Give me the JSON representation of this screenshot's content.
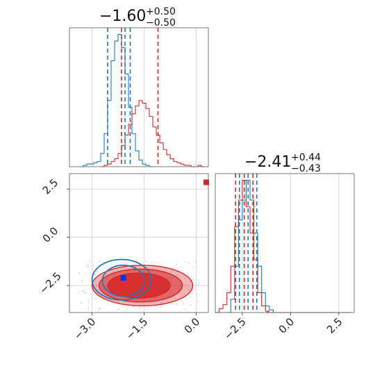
{
  "chart_data": {
    "type": "corner",
    "colors": {
      "blue": "#1f77b4",
      "red": "#d62728"
    },
    "panels": {
      "hist_x": {
        "title_value": "−1.60",
        "title_plus": "+0.50",
        "title_minus": "−0.50",
        "xlim": [
          -3.65,
          0.35
        ],
        "quantiles": {
          "blue": [
            -2.55,
            -2.05,
            -1.9
          ],
          "red": [
            -2.15,
            -1.1
          ]
        },
        "series": [
          {
            "name": "",
            "color": "blue",
            "x": [
              -3.3,
              -3.2,
              -3.1,
              -3.0,
              -2.9,
              -2.8,
              -2.7,
              -2.6,
              -2.5,
              -2.4,
              -2.3,
              -2.2,
              -2.1,
              -2.0,
              -1.9,
              -1.8,
              -1.7,
              -1.6,
              -1.5,
              -1.4,
              -1.3
            ],
            "y": [
              0.0,
              0.01,
              0.02,
              0.02,
              0.03,
              0.04,
              0.1,
              0.25,
              0.5,
              0.8,
              0.95,
              1.0,
              0.9,
              0.7,
              0.45,
              0.25,
              0.12,
              0.05,
              0.02,
              0.01,
              0.0
            ]
          },
          {
            "name": "",
            "color": "red",
            "x": [
              -2.7,
              -2.6,
              -2.5,
              -2.4,
              -2.3,
              -2.2,
              -2.1,
              -2.0,
              -1.9,
              -1.8,
              -1.7,
              -1.6,
              -1.5,
              -1.4,
              -1.3,
              -1.2,
              -1.1,
              -1.0,
              -0.9,
              -0.8,
              -0.7,
              -0.6,
              -0.5,
              -0.4,
              -0.3,
              -0.2,
              -0.1,
              0.0,
              0.1,
              0.2
            ],
            "y": [
              0.0,
              0.01,
              0.02,
              0.04,
              0.06,
              0.1,
              0.16,
              0.24,
              0.32,
              0.4,
              0.46,
              0.5,
              0.48,
              0.44,
              0.38,
              0.3,
              0.24,
              0.18,
              0.13,
              0.09,
              0.06,
              0.04,
              0.03,
              0.02,
              0.01,
              0.01,
              0.0,
              0.0,
              0.01,
              0.0
            ]
          }
        ]
      },
      "scatter_2d": {
        "xlim": [
          -3.65,
          0.35
        ],
        "ylim": [
          -3.9,
          3.3
        ],
        "xticks": [
          "−3.0",
          "−1.5",
          "0.0"
        ],
        "xtick_values": [
          -3.0,
          -1.5,
          0.0
        ],
        "yticks": [
          "2.5",
          "0.0",
          "−2.5"
        ],
        "ytick_values": [
          2.5,
          0.0,
          -2.5
        ],
        "markers": [
          {
            "color": "blue",
            "x": -2.1,
            "y": -2.1
          },
          {
            "color": "red",
            "x": 0.3,
            "y": 2.85
          }
        ],
        "red_filled_levels": [
          {
            "cx": -1.55,
            "cy": -2.5,
            "rx": 1.45,
            "ry": 1.05,
            "opacity": 0.35
          },
          {
            "cx": -1.6,
            "cy": -2.5,
            "rx": 1.2,
            "ry": 0.85,
            "opacity": 0.55
          },
          {
            "cx": -1.65,
            "cy": -2.5,
            "rx": 0.9,
            "ry": 0.65,
            "opacity": 0.85
          }
        ],
        "blue_contours": [
          {
            "cx": -2.15,
            "cy": -2.2,
            "rx": 0.85,
            "ry": 1.05
          },
          {
            "cx": -2.1,
            "cy": -2.25,
            "rx": 0.6,
            "ry": 0.8
          }
        ]
      },
      "hist_y": {
        "title_value": "−2.41",
        "title_plus": "+0.44",
        "title_minus": "−0.43",
        "xlim": [
          -3.9,
          3.3
        ],
        "xticks": [
          "−2.5",
          "0.0",
          "2.5"
        ],
        "xtick_values": [
          -2.5,
          0.0,
          2.5
        ],
        "quantiles": {
          "red": [
            -2.85,
            -2.4,
            -1.95
          ],
          "blue": [
            -2.65,
            -2.2,
            -1.75
          ]
        },
        "series": [
          {
            "name": "",
            "color": "red",
            "x": [
              -3.8,
              -3.6,
              -3.4,
              -3.2,
              -3.0,
              -2.8,
              -2.6,
              -2.4,
              -2.2,
              -2.0,
              -1.8,
              -1.6,
              -1.4,
              -1.2,
              -1.0,
              -0.5,
              0.0,
              1.0,
              2.0,
              3.0
            ],
            "y": [
              0.0,
              0.03,
              0.06,
              0.15,
              0.35,
              0.65,
              0.85,
              1.0,
              0.8,
              0.6,
              0.4,
              0.15,
              0.05,
              0.01,
              0.0,
              0.0,
              0.0,
              0.0,
              0.0,
              0.0
            ]
          },
          {
            "name": "",
            "color": "blue",
            "x": [
              -3.2,
              -3.0,
              -2.8,
              -2.6,
              -2.4,
              -2.2,
              -2.0,
              -1.8,
              -1.6,
              -1.4,
              -1.2,
              -1.0,
              -0.8
            ],
            "y": [
              0.0,
              0.1,
              0.35,
              0.7,
              0.85,
              1.0,
              0.85,
              0.6,
              0.35,
              0.15,
              0.05,
              0.02,
              0.0
            ]
          }
        ]
      }
    }
  }
}
